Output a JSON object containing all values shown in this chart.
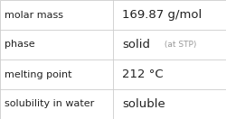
{
  "rows": [
    {
      "label": "molar mass",
      "value": "169.87 g/mol",
      "suffix": null
    },
    {
      "label": "phase",
      "value": "solid",
      "suffix": " (at STP)"
    },
    {
      "label": "melting point",
      "value": "212 °C",
      "suffix": null
    },
    {
      "label": "solubility in water",
      "value": "soluble",
      "suffix": null
    }
  ],
  "col_split": 0.5,
  "background_color": "#ffffff",
  "border_color": "#cccccc",
  "text_color": "#222222",
  "suffix_color": "#999999",
  "label_fontsize": 8.0,
  "value_fontsize": 9.5,
  "suffix_fontsize": 6.5
}
